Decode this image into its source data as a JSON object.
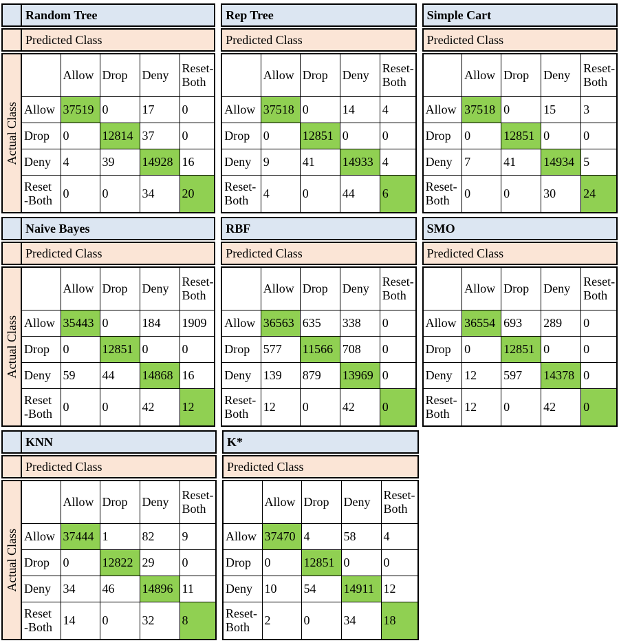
{
  "figure": {
    "predicted_label": "Predicted Class",
    "actual_label": "Actual Class",
    "column_headers_display": [
      "",
      "Allow",
      "Drop",
      "Deny",
      "Reset-\nBoth"
    ],
    "grid": [
      [
        0,
        1,
        2
      ],
      [
        3,
        4,
        5
      ],
      [
        6,
        7
      ]
    ],
    "colors": {
      "title_bg": "#dce6f2",
      "predicted_bg": "#fbe5d6",
      "actual_strip_bg": "#fbe5d6",
      "diagonal_highlight": "#90d052",
      "border": "#000000",
      "cell_bg": "#ffffff",
      "text": "#000000"
    }
  },
  "chart_data": [
    {
      "type": "table",
      "title": "Random Tree",
      "x_axis_label": "Predicted Class",
      "y_axis_label": "Actual Class",
      "classes": [
        "Allow",
        "Drop",
        "Deny",
        "Reset-Both"
      ],
      "row_labels_display": [
        "Allow",
        "Drop",
        "Deny",
        "Reset\n-Both"
      ],
      "matrix": [
        [
          37519,
          0,
          17,
          0
        ],
        [
          0,
          12814,
          37,
          0
        ],
        [
          4,
          39,
          14928,
          16
        ],
        [
          0,
          0,
          34,
          20
        ]
      ],
      "diagonal_highlighted": true,
      "has_actual_class_strip": true
    },
    {
      "type": "table",
      "title": "Rep Tree",
      "x_axis_label": "Predicted Class",
      "y_axis_label": "Actual Class",
      "classes": [
        "Allow",
        "Drop",
        "Deny",
        "Reset-Both"
      ],
      "row_labels_display": [
        "Allow",
        "Drop",
        "Deny",
        "Reset-\nBoth"
      ],
      "matrix": [
        [
          37518,
          0,
          14,
          4
        ],
        [
          0,
          12851,
          0,
          0
        ],
        [
          9,
          41,
          14933,
          4
        ],
        [
          4,
          0,
          44,
          6
        ]
      ],
      "diagonal_highlighted": true,
      "has_actual_class_strip": false
    },
    {
      "type": "table",
      "title": "Simple Cart",
      "x_axis_label": "Predicted Class",
      "y_axis_label": "Actual Class",
      "classes": [
        "Allow",
        "Drop",
        "Deny",
        "Reset-Both"
      ],
      "row_labels_display": [
        "Allow",
        "Drop",
        "Deny",
        "Reset-\nBoth"
      ],
      "matrix": [
        [
          37518,
          0,
          15,
          3
        ],
        [
          0,
          12851,
          0,
          0
        ],
        [
          7,
          41,
          14934,
          5
        ],
        [
          0,
          0,
          30,
          24
        ]
      ],
      "diagonal_highlighted": true,
      "has_actual_class_strip": false
    },
    {
      "type": "table",
      "title": "Naive Bayes",
      "x_axis_label": "Predicted Class",
      "y_axis_label": "Actual Class",
      "classes": [
        "Allow",
        "Drop",
        "Deny",
        "Reset-Both"
      ],
      "row_labels_display": [
        "Allow",
        "Drop",
        "Deny",
        "Reset\n-Both"
      ],
      "matrix": [
        [
          35443,
          0,
          184,
          1909
        ],
        [
          0,
          12851,
          0,
          0
        ],
        [
          59,
          44,
          14868,
          16
        ],
        [
          0,
          0,
          42,
          12
        ]
      ],
      "diagonal_highlighted": true,
      "has_actual_class_strip": true
    },
    {
      "type": "table",
      "title": "RBF",
      "x_axis_label": "Predicted Class",
      "y_axis_label": "Actual Class",
      "classes": [
        "Allow",
        "Drop",
        "Deny",
        "Reset-Both"
      ],
      "row_labels_display": [
        "Allow",
        "Drop",
        "Deny",
        "Reset-\nBoth"
      ],
      "matrix": [
        [
          36563,
          635,
          338,
          0
        ],
        [
          577,
          11566,
          708,
          0
        ],
        [
          139,
          879,
          13969,
          0
        ],
        [
          12,
          0,
          42,
          0
        ]
      ],
      "diagonal_highlighted": true,
      "has_actual_class_strip": false
    },
    {
      "type": "table",
      "title": "SMO",
      "x_axis_label": "Predicted Class",
      "y_axis_label": "Actual Class",
      "classes": [
        "Allow",
        "Drop",
        "Deny",
        "Reset-Both"
      ],
      "row_labels_display": [
        "Allow",
        "Drop",
        "Deny",
        "Reset-\nBoth"
      ],
      "matrix": [
        [
          36554,
          693,
          289,
          0
        ],
        [
          0,
          12851,
          0,
          0
        ],
        [
          12,
          597,
          14378,
          0
        ],
        [
          12,
          0,
          42,
          0
        ]
      ],
      "diagonal_highlighted": true,
      "has_actual_class_strip": false
    },
    {
      "type": "table",
      "title": "KNN",
      "x_axis_label": "Predicted Class",
      "y_axis_label": "Actual Class",
      "classes": [
        "Allow",
        "Drop",
        "Deny",
        "Reset-Both"
      ],
      "row_labels_display": [
        "Allow",
        "Drop",
        "Deny",
        "Reset\n-Both"
      ],
      "matrix": [
        [
          37444,
          1,
          82,
          9
        ],
        [
          0,
          12822,
          29,
          0
        ],
        [
          34,
          46,
          14896,
          11
        ],
        [
          14,
          0,
          32,
          8
        ]
      ],
      "diagonal_highlighted": true,
      "has_actual_class_strip": true
    },
    {
      "type": "table",
      "title": "K*",
      "x_axis_label": "Predicted Class",
      "y_axis_label": "Actual Class",
      "classes": [
        "Allow",
        "Drop",
        "Deny",
        "Reset-Both"
      ],
      "row_labels_display": [
        "Allow",
        "Drop",
        "Deny",
        "Reset-\nBoth"
      ],
      "matrix": [
        [
          37470,
          4,
          58,
          4
        ],
        [
          0,
          12851,
          0,
          0
        ],
        [
          10,
          54,
          14911,
          12
        ],
        [
          2,
          0,
          34,
          18
        ]
      ],
      "diagonal_highlighted": true,
      "has_actual_class_strip": false
    }
  ]
}
